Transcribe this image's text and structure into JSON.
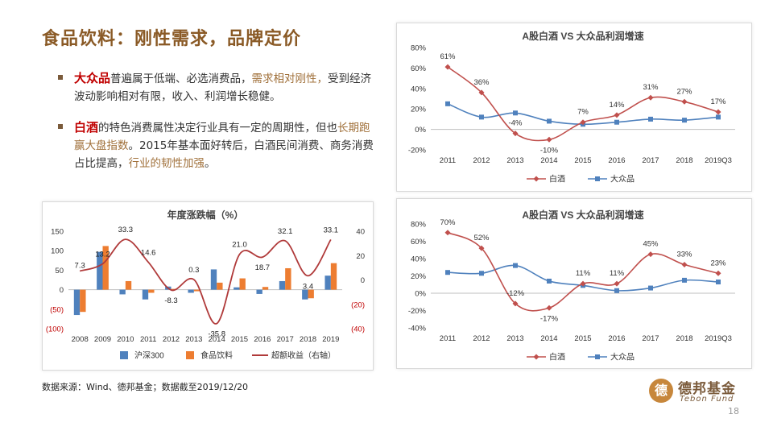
{
  "slide": {
    "title": "食品饮料：刚性需求，品牌定价",
    "bullet1": {
      "kw": "大众品",
      "text_a": "普遍属于低端、必选消费品，",
      "hl_a": "需求相对刚性，",
      "text_b": "受到经济波动影响相对有限，收入、利润增长稳健。"
    },
    "bullet2": {
      "kw": "白酒",
      "text_a": "的特色消费属性决定行业具有一定的周期性，但也",
      "hl_a": "长期跑赢大盘指数",
      "text_b": "。2015年基本面好转后，白酒民间消费、商务消费占比提高，",
      "hl_b": "行业的韧性加强",
      "text_c": "。"
    },
    "source": "数据来源：Wind、德邦基金；数据截至2019/12/20",
    "logo_cn": "德邦基金",
    "logo_en": "Tebon Fund",
    "page": "18"
  },
  "colors": {
    "title": "#8a5a26",
    "red_line": "#c0504d",
    "dark_red_line": "#b03a3a",
    "blue": "#4f81bd",
    "orange": "#ed7d31",
    "bullet_red": "#c00000"
  },
  "chart_data": [
    {
      "id": "top_right",
      "type": "line",
      "title": "A股白酒 VS 大众品利润增速",
      "categories": [
        "2011",
        "2012",
        "2013",
        "2014",
        "2015",
        "2016",
        "2017",
        "2018",
        "2019Q3"
      ],
      "series": [
        {
          "name": "白酒",
          "values": [
            61,
            36,
            -4,
            -10,
            7,
            14,
            31,
            27,
            17
          ],
          "labels": [
            "61%",
            "36%",
            "-4%",
            "-10%",
            "7%",
            "14%",
            "31%",
            "27%",
            "17%"
          ]
        },
        {
          "name": "大众品",
          "values": [
            25,
            12,
            16,
            8,
            5,
            7,
            10,
            9,
            12
          ]
        }
      ],
      "ylim": [
        -20,
        80
      ],
      "yticks": [
        "80%",
        "60%",
        "40%",
        "20%",
        "0%",
        "-20%"
      ]
    },
    {
      "id": "bottom_right",
      "type": "line",
      "title": "A股白酒 VS 大众品利润增速",
      "categories": [
        "2011",
        "2012",
        "2013",
        "2014",
        "2015",
        "2016",
        "2017",
        "2018",
        "2019Q3"
      ],
      "series": [
        {
          "name": "白酒",
          "values": [
            70,
            52,
            -12,
            -17,
            11,
            11,
            45,
            33,
            23
          ],
          "labels": [
            "70%",
            "52%",
            "-12%",
            "-17%",
            "11%",
            "11%",
            "45%",
            "33%",
            "23%"
          ]
        },
        {
          "name": "大众品",
          "values": [
            24,
            23,
            32,
            14,
            9,
            3,
            6,
            15,
            13
          ]
        }
      ],
      "ylim": [
        -40,
        80
      ],
      "yticks": [
        "80%",
        "60%",
        "40%",
        "20%",
        "0%",
        "-20%",
        "-40%"
      ]
    },
    {
      "id": "bottom_left",
      "type": "bar",
      "title": "年度涨跌幅（%）",
      "categories": [
        "2008",
        "2009",
        "2010",
        "2011",
        "2012",
        "2013",
        "2014",
        "2015",
        "2016",
        "2017",
        "2018",
        "2019"
      ],
      "series": [
        {
          "name": "沪深300",
          "values": [
            -65,
            97,
            -12,
            -25,
            8,
            -8,
            52,
            6,
            -11,
            22,
            -25,
            36
          ]
        },
        {
          "name": "食品饮料",
          "values": [
            -57,
            112,
            22,
            -8,
            2,
            -4,
            18,
            29,
            7,
            55,
            -22,
            68
          ]
        },
        {
          "name": "超额收益（右轴）",
          "values": [
            7.3,
            13.2,
            33.3,
            14.6,
            -8.3,
            0.3,
            -35.8,
            21.0,
            18.7,
            32.1,
            3.4,
            33.1
          ],
          "labels": [
            "7.3",
            "13.2",
            "33.3",
            "14.6",
            "-8.3",
            "0.3",
            "-35.8",
            "21.0",
            "18.7",
            "32.1",
            "3.4",
            "33.1"
          ]
        }
      ],
      "ylim_left": [
        -100,
        150
      ],
      "ylim_right": [
        -40,
        40
      ],
      "yticks_left": [
        "150",
        "100",
        "50",
        "0",
        "(50)",
        "(100)"
      ],
      "yticks_right": [
        "40",
        "20",
        "0",
        "(20)",
        "(40)"
      ]
    }
  ]
}
